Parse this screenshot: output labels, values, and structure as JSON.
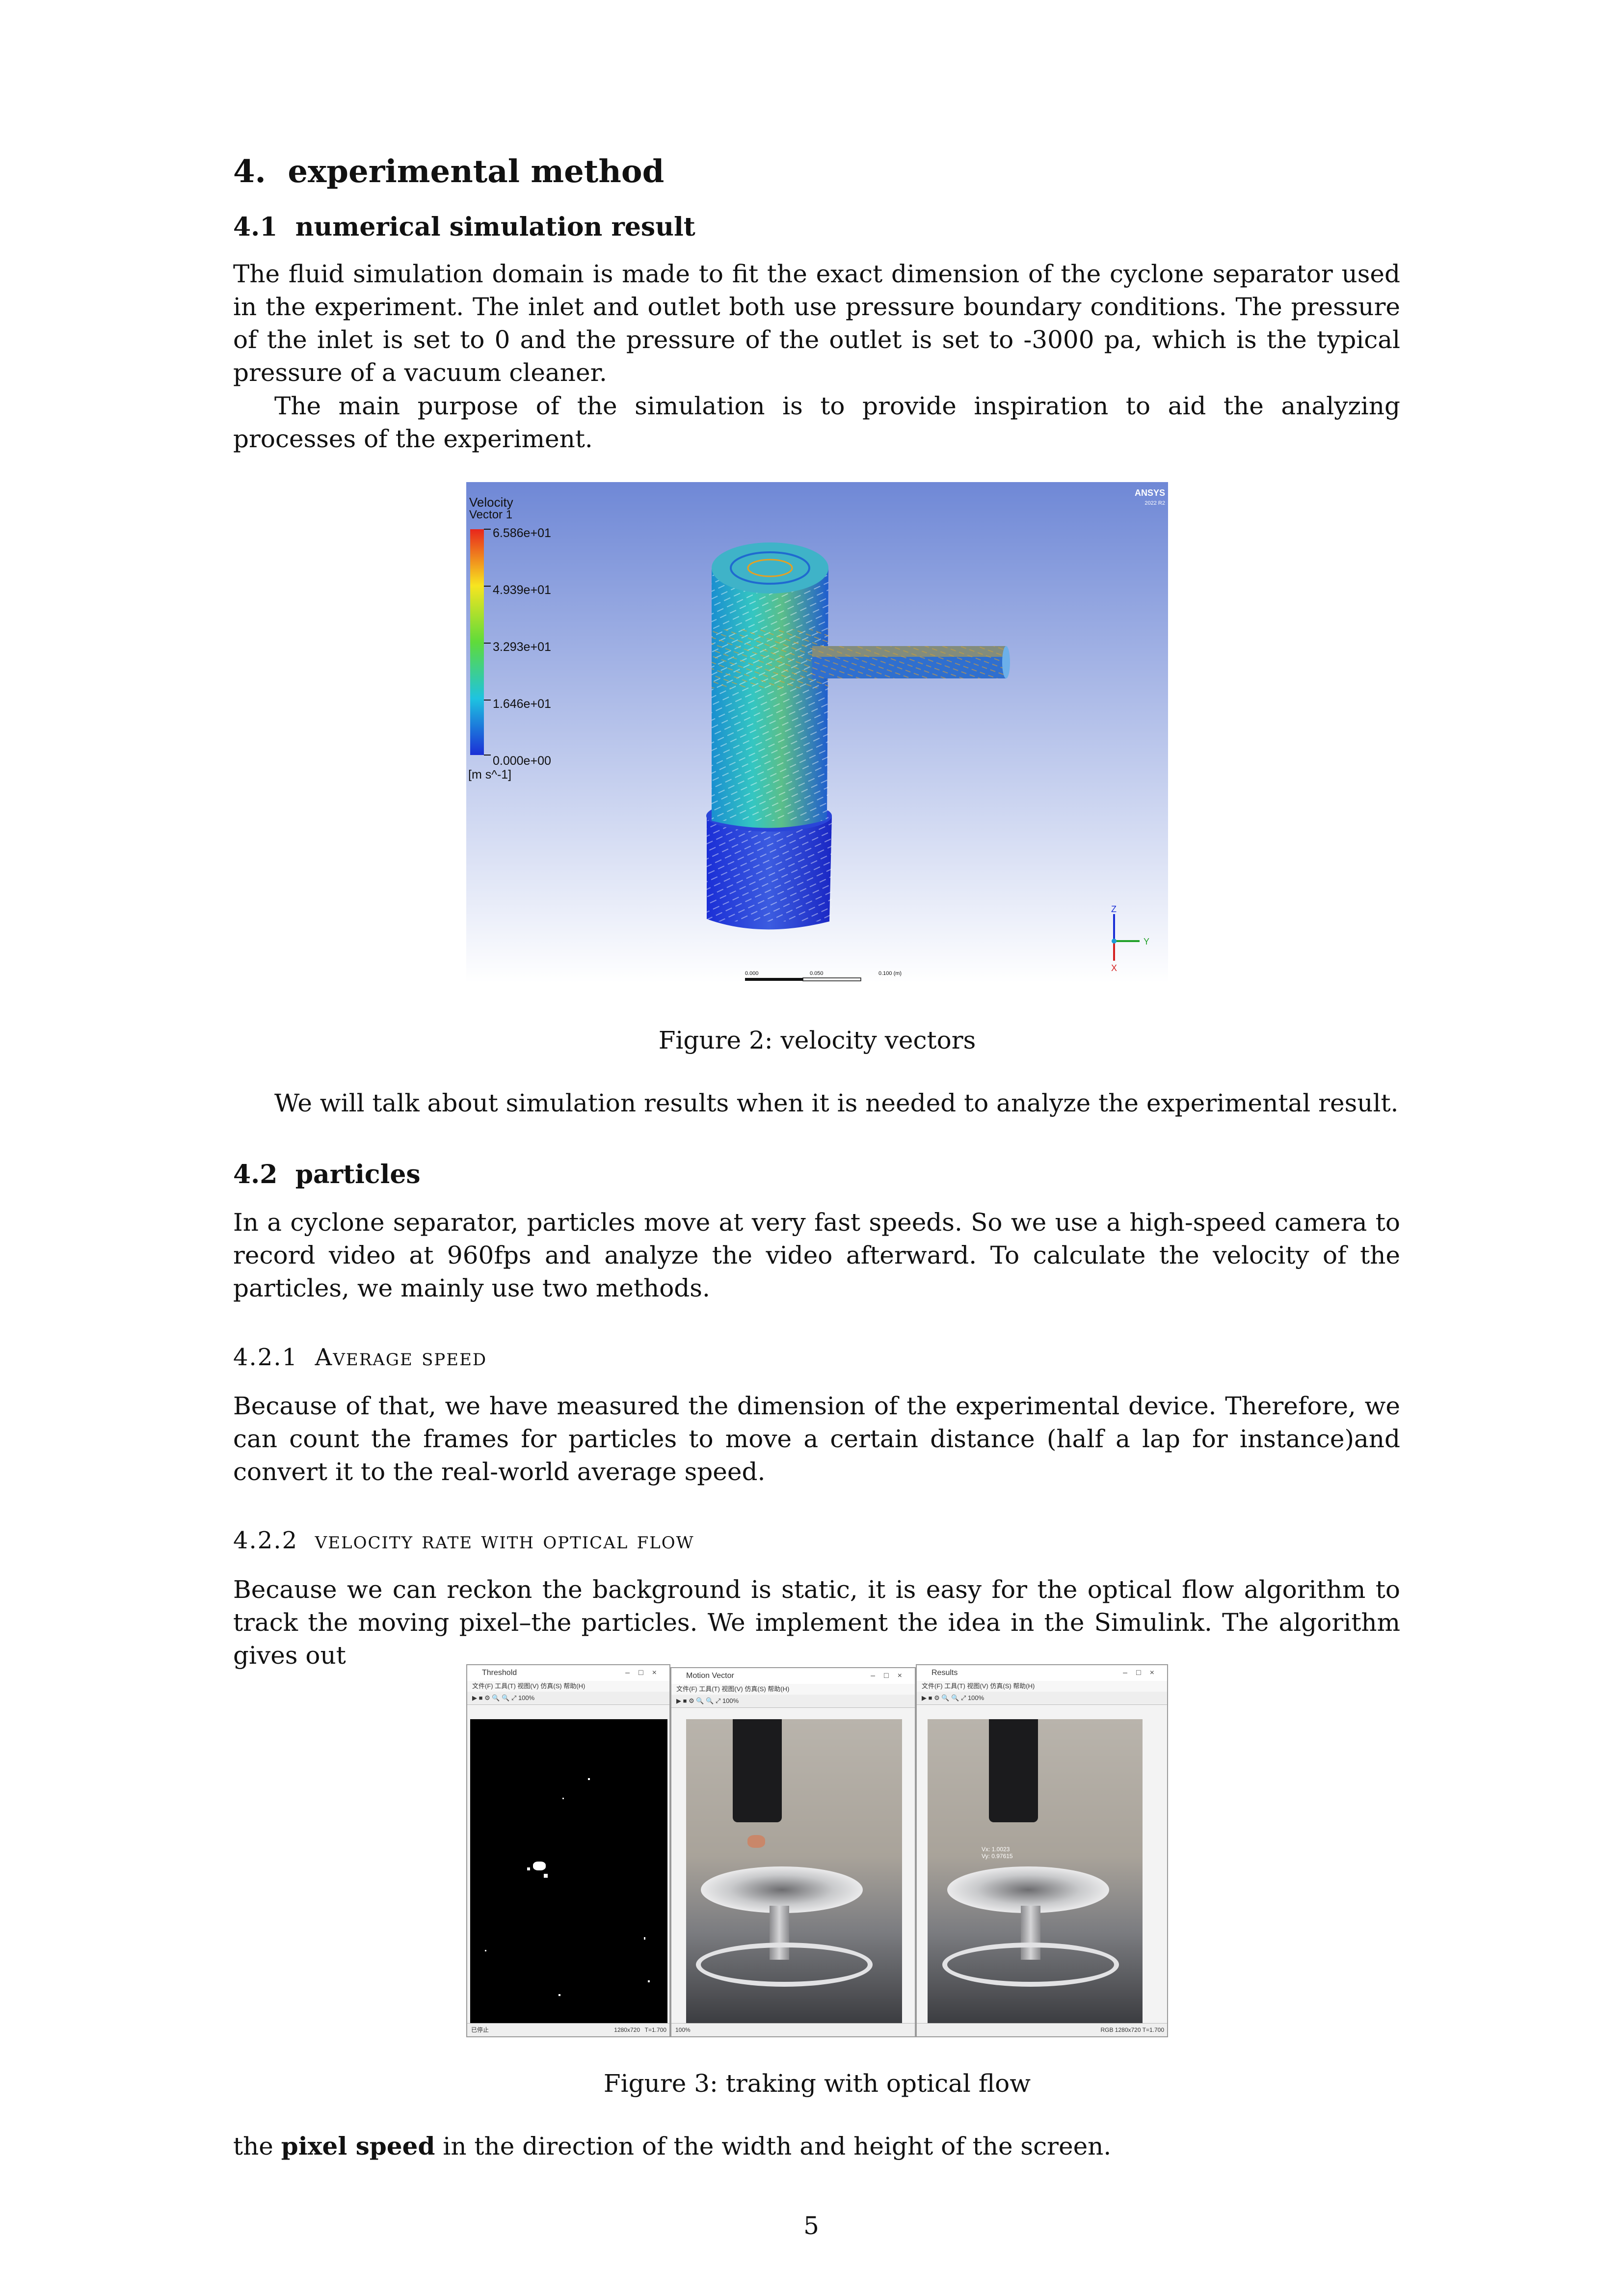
{
  "section": {
    "number": "4.",
    "title": "experimental method"
  },
  "sub41": {
    "number": "4.1",
    "title": "numerical simulation result"
  },
  "p1": "The fluid simulation domain is made to fit the exact dimension of the cyclone separator used in the experiment. The inlet and outlet both use pressure boundary conditions. The pressure of the inlet is set to 0 and the pressure of the outlet is set to -3000 pa, which is the typical pressure of a vacuum cleaner.",
  "p2": "The main purpose of the simulation is to provide inspiration to aid the analyzing processes of the experiment.",
  "fig2": {
    "caption": "Figure 2: velocity vectors",
    "legend_title": "Velocity",
    "legend_sub": "Vector 1",
    "legend_values": [
      "6.586e+01",
      "4.939e+01",
      "3.293e+01",
      "1.646e+01",
      "0.000e+00"
    ],
    "legend_unit": "[m s^-1]",
    "brand": "ANSYS",
    "brand_sub": "2022 R2",
    "axis_z": "Z",
    "axis_y": "Y",
    "axis_x": "X",
    "scale_labels": [
      "0.000",
      "0.050",
      "0.100  (m)"
    ],
    "scale_sub": [
      "0.025",
      "0.075"
    ]
  },
  "p3": "We will talk about simulation results when it is needed to analyze the experimental result.",
  "sub42": {
    "number": "4.2",
    "title": "particles"
  },
  "p4": "In a cyclone separator, particles move at very fast speeds. So we use a high-speed camera to record video at 960fps and analyze the video afterward. To calculate the velocity of the particles, we mainly use two methods.",
  "sub421": {
    "number": "4.2.1",
    "title": "Average speed"
  },
  "p5": "Because of that, we have measured the dimension of the experimental device. Therefore, we can count the frames for particles to move a certain distance (half a lap for instance)and convert it to the real-world average speed.",
  "sub422": {
    "number": "4.2.2",
    "title": "velocity rate with optical flow"
  },
  "p6": "Because we can reckon the background is static, it is easy for the optical flow algorithm to track the moving pixel–the particles. We implement the idea in the Simulink. The algorithm gives out",
  "fig3": {
    "caption": "Figure 3: traking with optical flow",
    "win1": {
      "title": "Threshold",
      "menu": "文件(F)  工具(T)  视图(V)  仿真(S)  帮助(H)",
      "zoom": "100%",
      "status_left": "已停止",
      "status_res": "1280x720",
      "status_t": "T=1.700"
    },
    "win2": {
      "title": "Motion Vector",
      "menu": "文件(F)  工具(T)  视图(V)  仿真(S)  帮助(H)",
      "zoom": "100%"
    },
    "win3": {
      "title": "Results",
      "menu": "文件(F)  工具(T)  视图(V)  仿真(S)  帮助(H)",
      "zoom": "100%",
      "overlay1": "Vx: 1.0023",
      "overlay2": "Vy: 0.97615"
    },
    "mid_status": "100%",
    "right_status": "RGB 1280x720  T=1.700"
  },
  "p7_before": "the ",
  "p7_bold": "pixel speed",
  "p7_after": " in the direction of the width and height of the screen.",
  "page_number": "5"
}
